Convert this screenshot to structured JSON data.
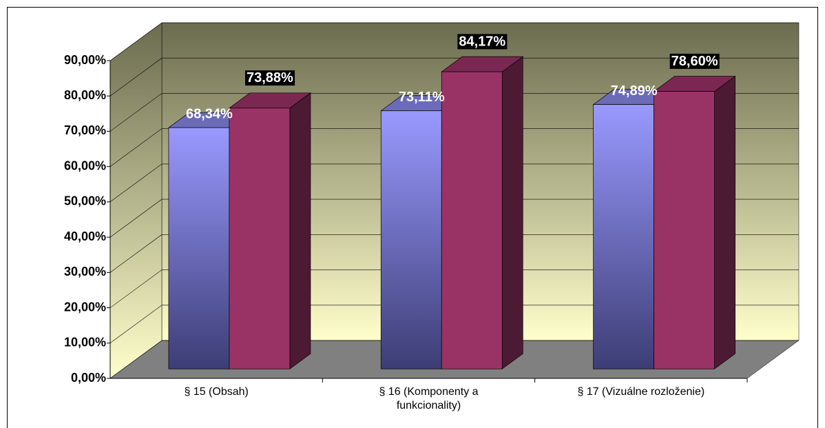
{
  "chart_data": {
    "type": "bar3d",
    "categories": [
      "§ 15 (Obsah)",
      "§ 16 (Komponenty a funkcionality)",
      "§ 17 (Vizuálne rozloženie)"
    ],
    "series": [
      {
        "color": "#9999ff",
        "values": [
          68.34,
          73.11,
          74.89
        ],
        "value_labels": [
          "68,34%",
          "73,11%",
          "74,89%"
        ]
      },
      {
        "color": "#993366",
        "values": [
          73.88,
          84.17,
          78.6
        ],
        "value_labels": [
          "73,88%",
          "84,17%",
          "78,60%"
        ]
      }
    ],
    "ylim": [
      0,
      90
    ],
    "yticks": [
      {
        "value": 0,
        "label": "0,00%"
      },
      {
        "value": 10,
        "label": "10,00%"
      },
      {
        "value": 20,
        "label": "20,00%"
      },
      {
        "value": 30,
        "label": "30,00%"
      },
      {
        "value": 40,
        "label": "40,00%"
      },
      {
        "value": 50,
        "label": "50,00%"
      },
      {
        "value": 60,
        "label": "60,00%"
      },
      {
        "value": 70,
        "label": "70,00%"
      },
      {
        "value": 80,
        "label": "80,00%"
      },
      {
        "value": 90,
        "label": "90,00%"
      }
    ],
    "grid": true
  }
}
